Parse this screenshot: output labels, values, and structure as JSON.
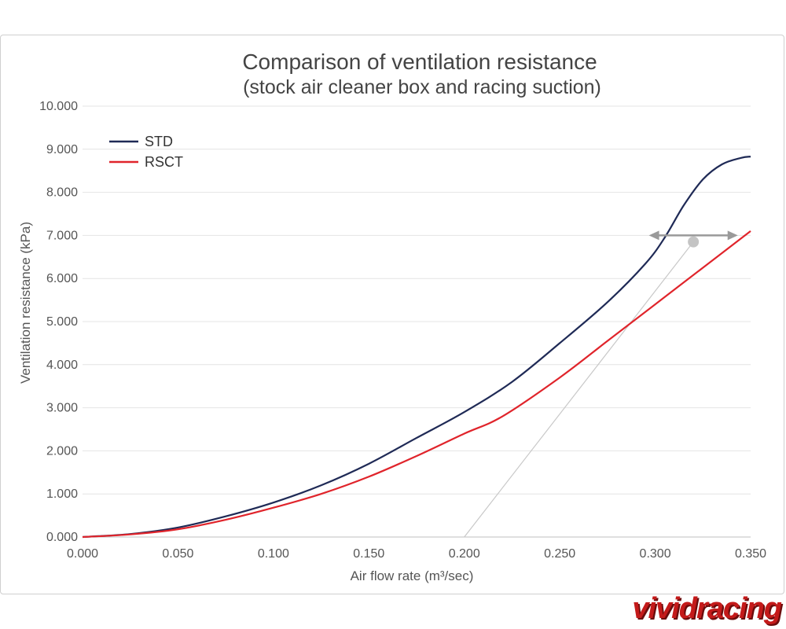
{
  "chart_data": {
    "type": "line",
    "title": "Comparison of ventilation resistance",
    "subtitle": "(stock air cleaner box and racing suction)",
    "xlabel": "Air flow rate (m³/sec)",
    "ylabel": "Ventilation resistance (kPa)",
    "xlim": [
      0,
      0.35
    ],
    "ylim": [
      0,
      10
    ],
    "x_ticks": [
      "0.000",
      "0.050",
      "0.100",
      "0.150",
      "0.200",
      "0.250",
      "0.300",
      "0.350"
    ],
    "y_ticks": [
      "0.000",
      "1.000",
      "2.000",
      "3.000",
      "4.000",
      "5.000",
      "6.000",
      "7.000",
      "8.000",
      "9.000",
      "10.000"
    ],
    "grid": "horizontal",
    "legend_position": "top-left",
    "series": [
      {
        "name": "STD",
        "color": "#1f2a56",
        "x": [
          0,
          0.025,
          0.05,
          0.075,
          0.1,
          0.125,
          0.15,
          0.175,
          0.2,
          0.225,
          0.25,
          0.275,
          0.295,
          0.305,
          0.315,
          0.325,
          0.335,
          0.345,
          0.35
        ],
        "y": [
          0,
          0.07,
          0.22,
          0.48,
          0.8,
          1.2,
          1.7,
          2.3,
          2.9,
          3.6,
          4.5,
          5.45,
          6.35,
          6.95,
          7.7,
          8.3,
          8.65,
          8.8,
          8.83
        ]
      },
      {
        "name": "RSCT",
        "color": "#e0242b",
        "x": [
          0,
          0.025,
          0.05,
          0.075,
          0.1,
          0.125,
          0.15,
          0.175,
          0.2,
          0.22,
          0.25,
          0.275,
          0.3,
          0.325,
          0.35
        ],
        "y": [
          0,
          0.06,
          0.18,
          0.4,
          0.68,
          1.0,
          1.4,
          1.88,
          2.4,
          2.8,
          3.7,
          4.55,
          5.4,
          6.25,
          7.1
        ]
      }
    ],
    "annotation": {
      "double_arrow": {
        "x_from": 0.3,
        "x_to": 0.34,
        "y": 7.0
      },
      "marker_point": {
        "x": 0.32,
        "y": 6.85
      },
      "leader_line_to": {
        "x": 0.2,
        "y": 0.0
      }
    }
  },
  "watermark": "vividracing"
}
